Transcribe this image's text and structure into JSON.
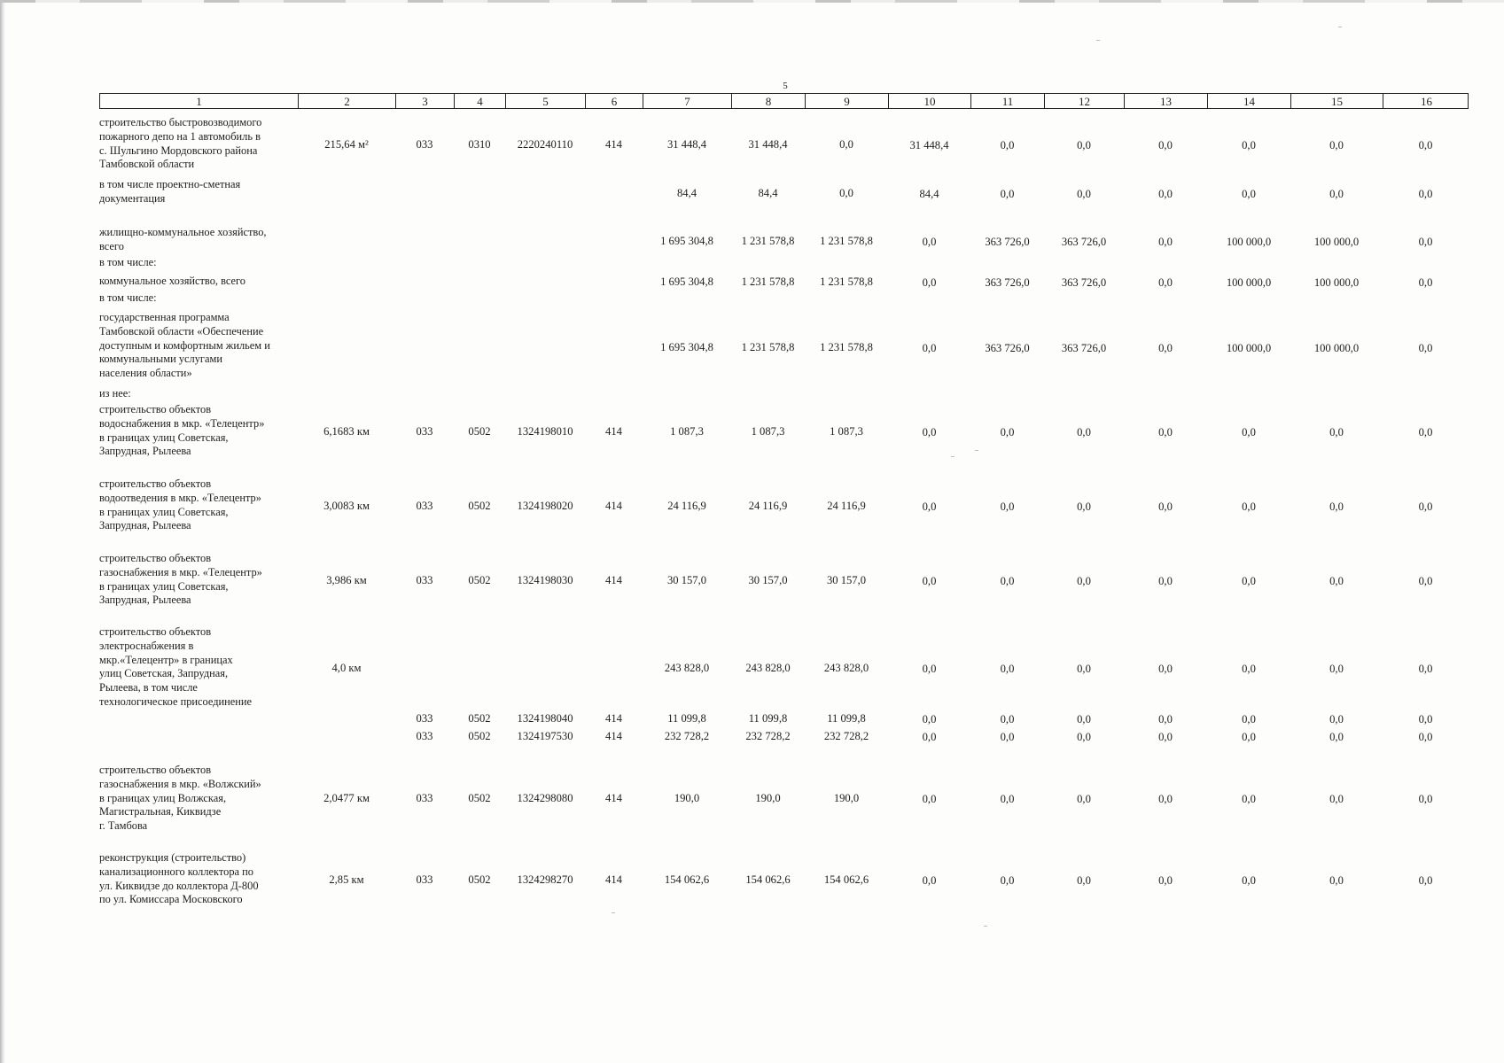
{
  "page_number": "5",
  "column_headers": [
    "1",
    "2",
    "3",
    "4",
    "5",
    "6",
    "7",
    "8",
    "9",
    "10",
    "11",
    "12",
    "13",
    "14",
    "15",
    "16"
  ],
  "rows": [
    {
      "id": "fire-depot",
      "desc": [
        "строительство быстровозводимого",
        "пожарного депо на 1 автомобиль в",
        "с. Шульгино Мордовского района",
        "Тамбовской области"
      ],
      "capacity": "215,64 м²",
      "c3": "033",
      "c4": "0310",
      "c5": "2220240110",
      "c6": "414",
      "values": [
        "31 448,4",
        "31 448,4",
        "0,0",
        "31 448,4",
        "0,0",
        "0,0",
        "0,0",
        "0,0",
        "0,0",
        "0,0"
      ]
    },
    {
      "id": "design-docs",
      "desc": [
        "в том числе проектно-сметная",
        "документация"
      ],
      "capacity": "",
      "c3": "",
      "c4": "",
      "c5": "",
      "c6": "",
      "values": [
        "84,4",
        "84,4",
        "0,0",
        "84,4",
        "0,0",
        "0,0",
        "0,0",
        "0,0",
        "0,0",
        "0,0"
      ]
    },
    {
      "id": "housing-total",
      "desc": [
        "жилищно-коммунальное хозяйство,",
        "всего"
      ],
      "capacity": "",
      "c3": "",
      "c4": "",
      "c5": "",
      "c6": "",
      "values": [
        "1 695 304,8",
        "1 231 578,8",
        "1 231 578,8",
        "0,0",
        "363 726,0",
        "363 726,0",
        "0,0",
        "100 000,0",
        "100 000,0",
        "0,0"
      ]
    },
    {
      "id": "including-1",
      "desc": [
        "в том числе:"
      ],
      "capacity": "",
      "c3": "",
      "c4": "",
      "c5": "",
      "c6": "",
      "values": []
    },
    {
      "id": "communal-total",
      "desc": [
        "коммунальное хозяйство, всего"
      ],
      "capacity": "",
      "c3": "",
      "c4": "",
      "c5": "",
      "c6": "",
      "values": [
        "1 695 304,8",
        "1 231 578,8",
        "1 231 578,8",
        "0,0",
        "363 726,0",
        "363 726,0",
        "0,0",
        "100 000,0",
        "100 000,0",
        "0,0"
      ]
    },
    {
      "id": "including-2",
      "desc": [
        "в том числе:"
      ],
      "capacity": "",
      "c3": "",
      "c4": "",
      "c5": "",
      "c6": "",
      "values": []
    },
    {
      "id": "state-program",
      "desc": [
        "государственная программа",
        "Тамбовской области «Обеспечение",
        "доступным и комфортным жильем и",
        "коммунальными услугами",
        "населения области»"
      ],
      "capacity": "",
      "c3": "",
      "c4": "",
      "c5": "",
      "c6": "",
      "values": [
        "1 695 304,8",
        "1 231 578,8",
        "1 231 578,8",
        "0,0",
        "363 726,0",
        "363 726,0",
        "0,0",
        "100 000,0",
        "100 000,0",
        "0,0"
      ]
    },
    {
      "id": "of-which",
      "desc": [
        "из нее:"
      ],
      "capacity": "",
      "c3": "",
      "c4": "",
      "c5": "",
      "c6": "",
      "values": []
    },
    {
      "id": "water-supply",
      "desc": [
        "строительство объектов",
        "водоснабжения в мкр. «Телецентр»",
        "в границах улиц Советская,",
        "Запрудная, Рылеева"
      ],
      "capacity": "6,1683 км",
      "c3": "033",
      "c4": "0502",
      "c5": "1324198010",
      "c6": "414",
      "values": [
        "1 087,3",
        "1 087,3",
        "1 087,3",
        "0,0",
        "0,0",
        "0,0",
        "0,0",
        "0,0",
        "0,0",
        "0,0"
      ]
    },
    {
      "id": "water-disposal",
      "desc": [
        "строительство объектов",
        "водоотведения в мкр. «Телецентр»",
        "в границах улиц Советская,",
        "Запрудная, Рылеева"
      ],
      "capacity": "3,0083 км",
      "c3": "033",
      "c4": "0502",
      "c5": "1324198020",
      "c6": "414",
      "values": [
        "24 116,9",
        "24 116,9",
        "24 116,9",
        "0,0",
        "0,0",
        "0,0",
        "0,0",
        "0,0",
        "0,0",
        "0,0"
      ]
    },
    {
      "id": "gas-telecenter",
      "desc": [
        "строительство объектов",
        "газоснабжения в мкр. «Телецентр»",
        "в границах улиц Советская,",
        "Запрудная, Рылеева"
      ],
      "capacity": "3,986 км",
      "c3": "033",
      "c4": "0502",
      "c5": "1324198030",
      "c6": "414",
      "values": [
        "30 157,0",
        "30 157,0",
        "30 157,0",
        "0,0",
        "0,0",
        "0,0",
        "0,0",
        "0,0",
        "0,0",
        "0,0"
      ]
    },
    {
      "id": "power-supply",
      "desc": [
        "строительство объектов",
        "электроснабжения в",
        "мкр.«Телецентр» в границах",
        "улиц Советская, Запрудная,",
        "Рылеева, в том числе",
        "технологическое присоединение"
      ],
      "capacity": "4,0 км",
      "c3": "",
      "c4": "",
      "c5": "",
      "c6": "",
      "values": [
        "243 828,0",
        "243 828,0",
        "243 828,0",
        "0,0",
        "0,0",
        "0,0",
        "0,0",
        "0,0",
        "0,0",
        "0,0"
      ]
    },
    {
      "id": "power-sub-1",
      "desc": [],
      "capacity": "",
      "c3": "033",
      "c4": "0502",
      "c5": "1324198040",
      "c6": "414",
      "values": [
        "11 099,8",
        "11 099,8",
        "11 099,8",
        "0,0",
        "0,0",
        "0,0",
        "0,0",
        "0,0",
        "0,0",
        "0,0"
      ]
    },
    {
      "id": "power-sub-2",
      "desc": [],
      "capacity": "",
      "c3": "033",
      "c4": "0502",
      "c5": "1324197530",
      "c6": "414",
      "values": [
        "232 728,2",
        "232 728,2",
        "232 728,2",
        "0,0",
        "0,0",
        "0,0",
        "0,0",
        "0,0",
        "0,0",
        "0,0"
      ]
    },
    {
      "id": "gas-volzhsky",
      "desc": [
        "строительство объектов",
        "газоснабжения в мкр. «Волжский»",
        "в границах улиц Волжская,",
        "Магистральная, Киквидзе",
        "г. Тамбова"
      ],
      "capacity": "2,0477 км",
      "c3": "033",
      "c4": "0502",
      "c5": "1324298080",
      "c6": "414",
      "values": [
        "190,0",
        "190,0",
        "190,0",
        "0,0",
        "0,0",
        "0,0",
        "0,0",
        "0,0",
        "0,0",
        "0,0"
      ]
    },
    {
      "id": "sewer-collector",
      "desc": [
        "реконструкция (строительство)",
        "канализационного коллектора по",
        "ул. Киквидзе до коллектора Д-800",
        "по ул. Комиссара Московского"
      ],
      "capacity": "2,85 км",
      "c3": "033",
      "c4": "0502",
      "c5": "1324298270",
      "c6": "414",
      "values": [
        "154 062,6",
        "154 062,6",
        "154 062,6",
        "0,0",
        "0,0",
        "0,0",
        "0,0",
        "0,0",
        "0,0",
        "0,0"
      ]
    }
  ]
}
